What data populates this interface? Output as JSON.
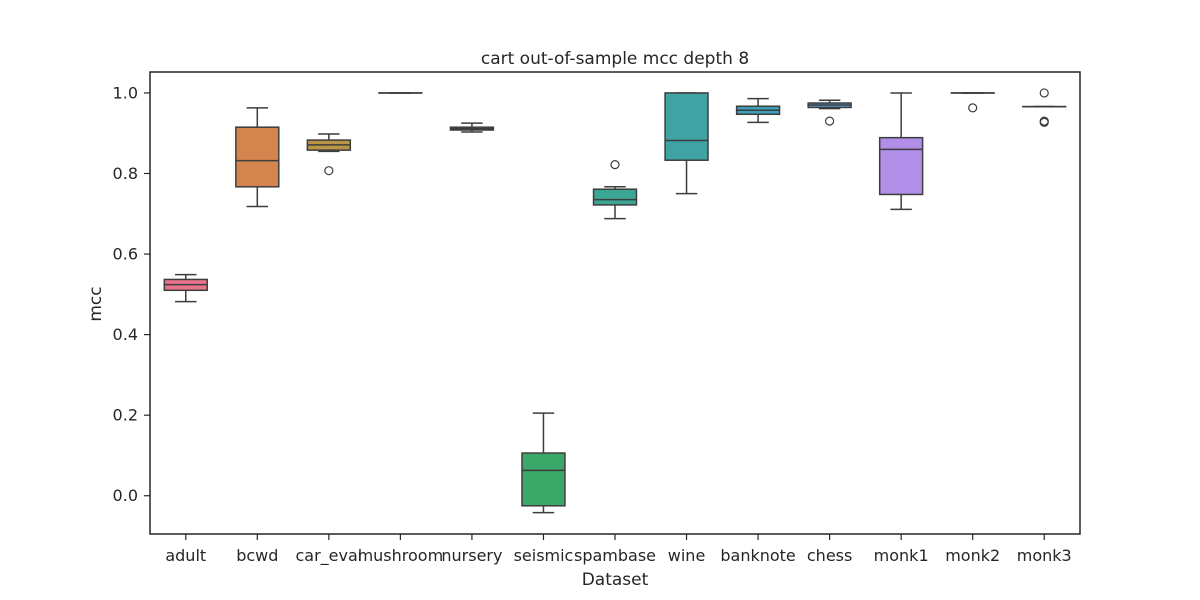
{
  "chart_data": {
    "type": "box",
    "title": "cart out-of-sample mcc depth 8",
    "xlabel": "Dataset",
    "ylabel": "mcc",
    "ylim": [
      -0.095,
      1.052
    ],
    "yticks": [
      "0.0",
      "0.2",
      "0.4",
      "0.6",
      "0.8",
      "1.0"
    ],
    "ytick_values": [
      0.0,
      0.2,
      0.4,
      0.6,
      0.8,
      1.0
    ],
    "grid": false,
    "categories": [
      "adult",
      "bcwd",
      "car_eval",
      "mushroom",
      "nursery",
      "seismic",
      "spambase",
      "wine",
      "banknote",
      "chess",
      "monk1",
      "monk2",
      "monk3"
    ],
    "boxes": [
      {
        "category": "adult",
        "color": "#e8738a",
        "whislo": 0.482,
        "q1": 0.51,
        "med": 0.524,
        "q3": 0.537,
        "whishi": 0.549,
        "fliers": []
      },
      {
        "category": "bcwd",
        "color": "#d4854e",
        "whislo": 0.718,
        "q1": 0.767,
        "med": 0.832,
        "q3": 0.915,
        "whishi": 0.963,
        "fliers": []
      },
      {
        "category": "car_eval",
        "color": "#ba9545",
        "whislo": 0.855,
        "q1": 0.858,
        "med": 0.871,
        "q3": 0.883,
        "whishi": 0.898,
        "fliers": [
          0.807
        ]
      },
      {
        "category": "mushroom",
        "color": "#a39b3b",
        "whislo": 1.0,
        "q1": 1.0,
        "med": 1.0,
        "q3": 1.0,
        "whishi": 1.0,
        "fliers": []
      },
      {
        "category": "nursery",
        "color": "#7aa63c",
        "whislo": 0.903,
        "q1": 0.908,
        "med": 0.911,
        "q3": 0.915,
        "whishi": 0.925,
        "fliers": []
      },
      {
        "category": "seismic",
        "color": "#3ba86a",
        "whislo": -0.042,
        "q1": -0.025,
        "med": 0.063,
        "q3": 0.106,
        "whishi": 0.205,
        "fliers": []
      },
      {
        "category": "spambase",
        "color": "#3ba694",
        "whislo": 0.688,
        "q1": 0.722,
        "med": 0.735,
        "q3": 0.761,
        "whishi": 0.767,
        "fliers": [
          0.822
        ]
      },
      {
        "category": "wine",
        "color": "#3fa3a3",
        "whislo": 0.75,
        "q1": 0.833,
        "med": 0.882,
        "q3": 1.0,
        "whishi": 1.0,
        "fliers": []
      },
      {
        "category": "banknote",
        "color": "#3da0b8",
        "whislo": 0.927,
        "q1": 0.947,
        "med": 0.957,
        "q3": 0.967,
        "whishi": 0.986,
        "fliers": []
      },
      {
        "category": "chess",
        "color": "#5b9fdb",
        "whislo": 0.961,
        "q1": 0.964,
        "med": 0.97,
        "q3": 0.975,
        "whishi": 0.982,
        "fliers": [
          0.93
        ]
      },
      {
        "category": "monk1",
        "color": "#b18fe8",
        "whislo": 0.711,
        "q1": 0.748,
        "med": 0.86,
        "q3": 0.889,
        "whishi": 1.0,
        "fliers": []
      },
      {
        "category": "monk2",
        "color": "#dc82e0",
        "whislo": 1.0,
        "q1": 1.0,
        "med": 1.0,
        "q3": 1.0,
        "whishi": 1.0,
        "fliers": [
          0.963
        ]
      },
      {
        "category": "monk3",
        "color": "#e882b8",
        "whislo": 0.966,
        "q1": 0.966,
        "med": 0.966,
        "q3": 0.966,
        "whishi": 0.966,
        "fliers": [
          1.0,
          0.93,
          0.927
        ]
      }
    ]
  }
}
